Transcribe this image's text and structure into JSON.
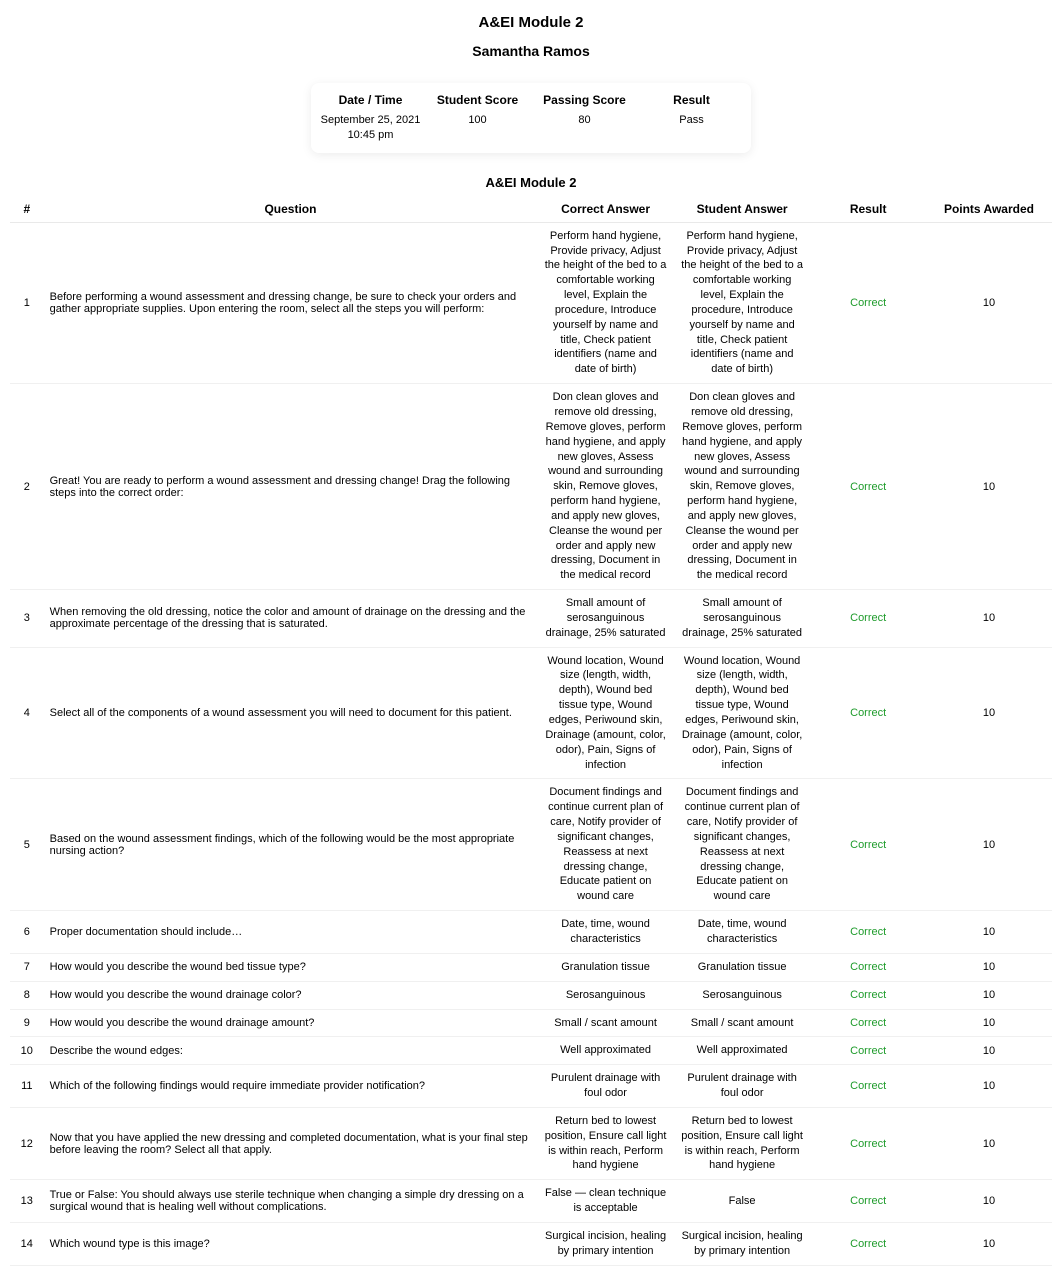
{
  "colors": {
    "correct": "#1e9b2b",
    "text": "#000000",
    "background": "#ffffff",
    "row_border": "#f0f0f0"
  },
  "header": {
    "module_title": "A&EI Module 2",
    "student_name": "Samantha Ramos"
  },
  "summary": {
    "labels": {
      "datetime": "Date / Time",
      "student_score": "Student Score",
      "passing_score": "Passing Score",
      "result": "Result"
    },
    "values": {
      "date": "September 25, 2021",
      "time": "10:45 pm",
      "student_score": "100",
      "passing_score": "80",
      "result": "Pass"
    }
  },
  "table": {
    "section_title": "A&EI Module 2",
    "headers": {
      "num": "#",
      "question": "Question",
      "correct_answer": "Correct Answer",
      "student_answer": "Student Answer",
      "result": "Result",
      "points": "Points Awarded"
    },
    "rows": [
      {
        "num": "1",
        "question": "Before performing a wound assessment and dressing change, be sure to check your orders and gather appropriate supplies. Upon entering the room, select all the steps you will perform:",
        "correct_answer": "Perform hand hygiene, Provide privacy, Adjust the height of the bed to a comfortable working level, Explain the procedure, Introduce yourself by name and title, Check patient identifiers (name and date of birth)",
        "student_answer": "Perform hand hygiene, Provide privacy, Adjust the height of the bed to a comfortable working level, Explain the procedure, Introduce yourself by name and title, Check patient identifiers (name and date of birth)",
        "result": "Correct",
        "points": "10"
      },
      {
        "num": "2",
        "question": "Great! You are ready to perform a wound assessment and dressing change! Drag the following steps into the correct order:",
        "correct_answer": "Don clean gloves and remove old dressing, Remove gloves, perform hand hygiene, and apply new gloves, Assess wound and surrounding skin, Remove gloves, perform hand hygiene, and apply new gloves, Cleanse the wound per order and apply new dressing, Document in the medical record",
        "student_answer": "Don clean gloves and remove old dressing, Remove gloves, perform hand hygiene, and apply new gloves, Assess wound and surrounding skin, Remove gloves, perform hand hygiene, and apply new gloves, Cleanse the wound per order and apply new dressing, Document in the medical record",
        "result": "Correct",
        "points": "10"
      },
      {
        "num": "3",
        "question": "When removing the old dressing, notice the color and amount of drainage on the dressing and the approximate percentage of the dressing that is saturated.",
        "correct_answer": "Small amount of serosanguinous drainage, 25% saturated",
        "student_answer": "Small amount of serosanguinous drainage, 25% saturated",
        "result": "Correct",
        "points": "10"
      },
      {
        "num": "4",
        "question": "Select all of the components of a wound assessment you will need to document for this patient.",
        "correct_answer": "Wound location, Wound size (length, width, depth), Wound bed tissue type, Wound edges, Periwound skin, Drainage (amount, color, odor), Pain, Signs of infection",
        "student_answer": "Wound location, Wound size (length, width, depth), Wound bed tissue type, Wound edges, Periwound skin, Drainage (amount, color, odor), Pain, Signs of infection",
        "result": "Correct",
        "points": "10"
      },
      {
        "num": "5",
        "question": "Based on the wound assessment findings, which of the following would be the most appropriate nursing action?",
        "correct_answer": "Document findings and continue current plan of care, Notify provider of significant changes, Reassess at next dressing change, Educate patient on wound care",
        "student_answer": "Document findings and continue current plan of care, Notify provider of significant changes, Reassess at next dressing change, Educate patient on wound care",
        "result": "Correct",
        "points": "10"
      },
      {
        "num": "6",
        "question": "Proper documentation should include…",
        "correct_answer": "Date, time, wound characteristics",
        "student_answer": "Date, time, wound characteristics",
        "result": "Correct",
        "points": "10"
      },
      {
        "num": "7",
        "question": "How would you describe the wound bed tissue type?",
        "correct_answer": "Granulation tissue",
        "student_answer": "Granulation tissue",
        "result": "Correct",
        "points": "10"
      },
      {
        "num": "8",
        "question": "How would you describe the wound drainage color?",
        "correct_answer": "Serosanguinous",
        "student_answer": "Serosanguinous",
        "result": "Correct",
        "points": "10"
      },
      {
        "num": "9",
        "question": "How would you describe the wound drainage amount?",
        "correct_answer": "Small / scant amount",
        "student_answer": "Small / scant amount",
        "result": "Correct",
        "points": "10"
      },
      {
        "num": "10",
        "question": "Describe the wound edges:",
        "correct_answer": "Well approximated",
        "student_answer": "Well approximated",
        "result": "Correct",
        "points": "10"
      },
      {
        "num": "11",
        "question": "Which of the following findings would require immediate provider notification?",
        "correct_answer": "Purulent drainage with foul odor",
        "student_answer": "Purulent drainage with foul odor",
        "result": "Correct",
        "points": "10"
      },
      {
        "num": "12",
        "question": "Now that you have applied the new dressing and completed documentation, what is your final step before leaving the room? Select all that apply.",
        "correct_answer": "Return bed to lowest position, Ensure call light is within reach, Perform hand hygiene",
        "student_answer": "Return bed to lowest position, Ensure call light is within reach, Perform hand hygiene",
        "result": "Correct",
        "points": "10"
      },
      {
        "num": "13",
        "question": "True or False: You should always use sterile technique when changing a simple dry dressing on a surgical wound that is healing well without complications.",
        "correct_answer": "False — clean technique is acceptable",
        "student_answer": "False",
        "result": "Correct",
        "points": "10"
      },
      {
        "num": "14",
        "question": "Which wound type is this image?",
        "correct_answer": "Surgical incision, healing by primary intention",
        "student_answer": "Surgical incision, healing by primary intention",
        "result": "Correct",
        "points": "10"
      }
    ]
  }
}
